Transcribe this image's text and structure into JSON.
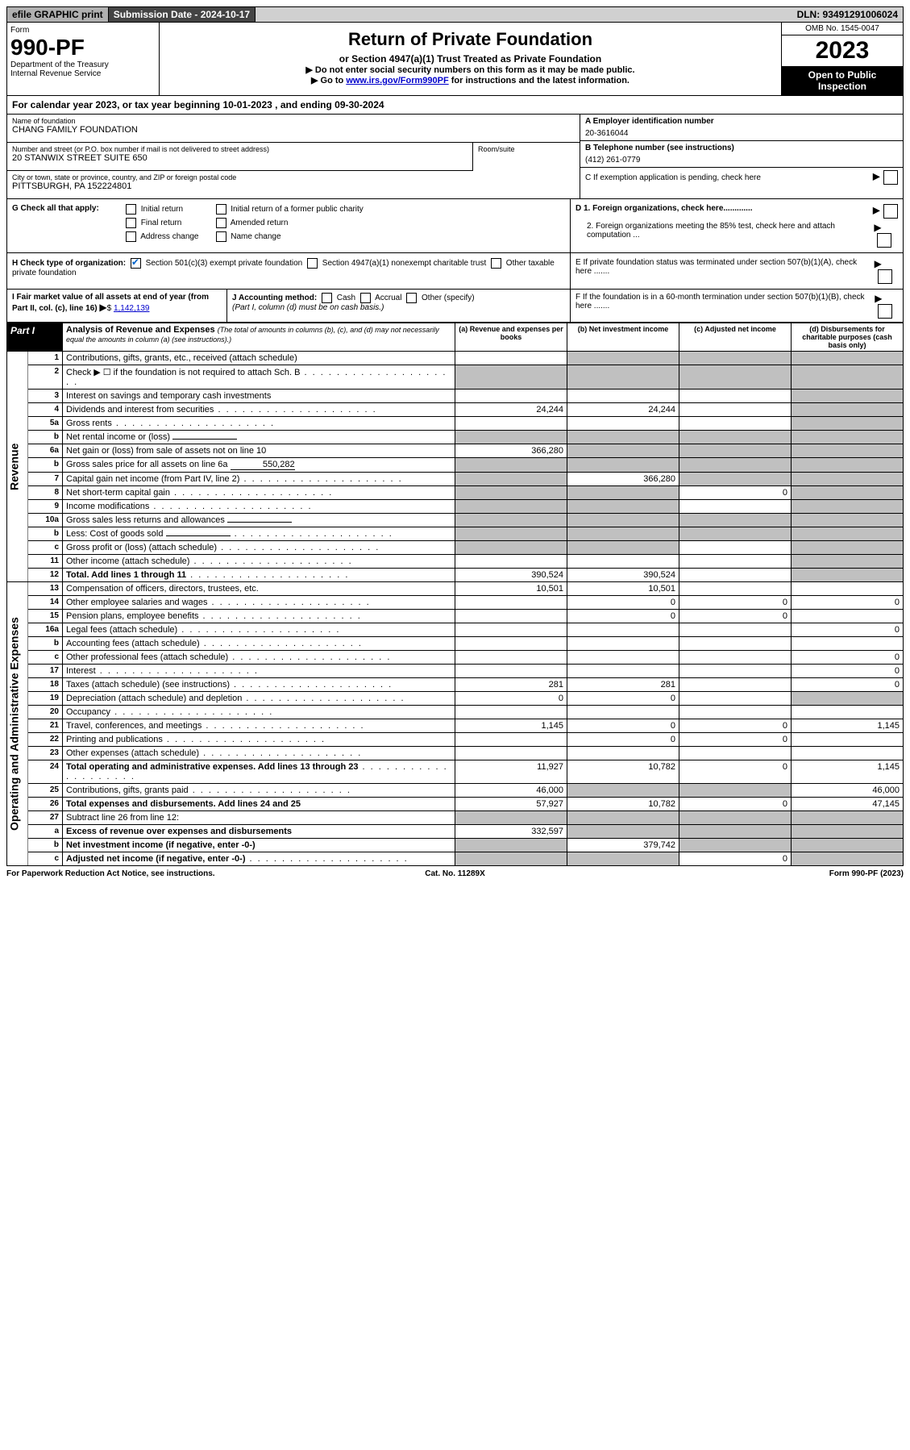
{
  "top": {
    "efile": "efile GRAPHIC print",
    "submission": "Submission Date - 2024-10-17",
    "dln": "DLN: 93491291006024"
  },
  "header": {
    "form_label": "Form",
    "form_number": "990-PF",
    "dept": "Department of the Treasury",
    "irs": "Internal Revenue Service",
    "title": "Return of Private Foundation",
    "subtitle": "or Section 4947(a)(1) Trust Treated as Private Foundation",
    "instr1": "▶ Do not enter social security numbers on this form as it may be made public.",
    "instr2_pre": "▶ Go to ",
    "instr2_link": "www.irs.gov/Form990PF",
    "instr2_post": " for instructions and the latest information.",
    "omb": "OMB No. 1545-0047",
    "year": "2023",
    "inspect": "Open to Public Inspection"
  },
  "cal_year": "For calendar year 2023, or tax year beginning 10-01-2023           , and ending 09-30-2024",
  "info": {
    "name_lbl": "Name of foundation",
    "name": "CHANG FAMILY FOUNDATION",
    "addr_lbl": "Number and street (or P.O. box number if mail is not delivered to street address)",
    "addr": "20 STANWIX STREET SUITE 650",
    "room_lbl": "Room/suite",
    "city_lbl": "City or town, state or province, country, and ZIP or foreign postal code",
    "city": "PITTSBURGH, PA  152224801",
    "a_lbl": "A Employer identification number",
    "a_val": "20-3616044",
    "b_lbl": "B Telephone number (see instructions)",
    "b_val": "(412) 261-0779",
    "c_lbl": "C If exemption application is pending, check here",
    "d1_lbl": "D 1. Foreign organizations, check here.............",
    "d2_lbl": "2. Foreign organizations meeting the 85% test, check here and attach computation ...",
    "e_lbl": "E  If private foundation status was terminated under section 507(b)(1)(A), check here .......",
    "f_lbl": "F  If the foundation is in a 60-month termination under section 507(b)(1)(B), check here .......",
    "g_lbl": "G Check all that apply:",
    "g_opts": [
      "Initial return",
      "Initial return of a former public charity",
      "Final return",
      "Amended return",
      "Address change",
      "Name change"
    ],
    "h_lbl": "H Check type of organization:",
    "h_opts": [
      "Section 501(c)(3) exempt private foundation",
      "Section 4947(a)(1) nonexempt charitable trust",
      "Other taxable private foundation"
    ],
    "i_lbl": "I Fair market value of all assets at end of year (from Part II, col. (c), line 16)",
    "i_val": "1,142,139",
    "j_lbl": "J Accounting method:",
    "j_opts": [
      "Cash",
      "Accrual",
      "Other (specify)"
    ],
    "j_note": "(Part I, column (d) must be on cash basis.)"
  },
  "part1": {
    "label": "Part I",
    "title": "Analysis of Revenue and Expenses",
    "title_note": "(The total of amounts in columns (b), (c), and (d) may not necessarily equal the amounts in column (a) (see instructions).)",
    "cols": {
      "a": "(a)  Revenue and expenses per books",
      "b": "(b)  Net investment income",
      "c": "(c)  Adjusted net income",
      "d": "(d)  Disbursements for charitable purposes (cash basis only)"
    },
    "revenue_label": "Revenue",
    "expenses_label": "Operating and Administrative Expenses",
    "rows": [
      {
        "ln": "1",
        "desc": "Contributions, gifts, grants, etc., received (attach schedule)",
        "a": "",
        "b": "grey",
        "c": "grey",
        "d": "grey"
      },
      {
        "ln": "2",
        "desc": "Check ▶ ☐ if the foundation is not required to attach Sch. B",
        "a": "grey",
        "b": "grey",
        "c": "grey",
        "d": "grey",
        "dots": true
      },
      {
        "ln": "3",
        "desc": "Interest on savings and temporary cash investments",
        "a": "",
        "b": "",
        "c": "",
        "d": "grey"
      },
      {
        "ln": "4",
        "desc": "Dividends and interest from securities",
        "a": "24,244",
        "b": "24,244",
        "c": "",
        "d": "grey",
        "dots": true
      },
      {
        "ln": "5a",
        "desc": "Gross rents",
        "a": "",
        "b": "",
        "c": "",
        "d": "grey",
        "dots": true
      },
      {
        "ln": "b",
        "desc": "Net rental income or (loss)",
        "a": "grey",
        "b": "grey",
        "c": "grey",
        "d": "grey",
        "inline": ""
      },
      {
        "ln": "6a",
        "desc": "Net gain or (loss) from sale of assets not on line 10",
        "a": "366,280",
        "b": "grey",
        "c": "grey",
        "d": "grey"
      },
      {
        "ln": "b",
        "desc": "Gross sales price for all assets on line 6a",
        "a": "grey",
        "b": "grey",
        "c": "grey",
        "d": "grey",
        "inline": "550,282"
      },
      {
        "ln": "7",
        "desc": "Capital gain net income (from Part IV, line 2)",
        "a": "grey",
        "b": "366,280",
        "c": "grey",
        "d": "grey",
        "dots": true
      },
      {
        "ln": "8",
        "desc": "Net short-term capital gain",
        "a": "grey",
        "b": "grey",
        "c": "0",
        "d": "grey",
        "dots": true
      },
      {
        "ln": "9",
        "desc": "Income modifications",
        "a": "grey",
        "b": "grey",
        "c": "",
        "d": "grey",
        "dots": true
      },
      {
        "ln": "10a",
        "desc": "Gross sales less returns and allowances",
        "a": "grey",
        "b": "grey",
        "c": "grey",
        "d": "grey",
        "inline": ""
      },
      {
        "ln": "b",
        "desc": "Less: Cost of goods sold",
        "a": "grey",
        "b": "grey",
        "c": "grey",
        "d": "grey",
        "inline": "",
        "dots": true
      },
      {
        "ln": "c",
        "desc": "Gross profit or (loss) (attach schedule)",
        "a": "grey",
        "b": "grey",
        "c": "",
        "d": "grey",
        "dots": true
      },
      {
        "ln": "11",
        "desc": "Other income (attach schedule)",
        "a": "",
        "b": "",
        "c": "",
        "d": "grey",
        "dots": true
      },
      {
        "ln": "12",
        "desc": "Total. Add lines 1 through 11",
        "a": "390,524",
        "b": "390,524",
        "c": "",
        "d": "grey",
        "bold": true,
        "dots": true
      },
      {
        "ln": "13",
        "desc": "Compensation of officers, directors, trustees, etc.",
        "a": "10,501",
        "b": "10,501",
        "c": "",
        "d": ""
      },
      {
        "ln": "14",
        "desc": "Other employee salaries and wages",
        "a": "",
        "b": "0",
        "c": "0",
        "d": "0",
        "dots": true
      },
      {
        "ln": "15",
        "desc": "Pension plans, employee benefits",
        "a": "",
        "b": "0",
        "c": "0",
        "d": "",
        "dots": true
      },
      {
        "ln": "16a",
        "desc": "Legal fees (attach schedule)",
        "a": "",
        "b": "",
        "c": "",
        "d": "0",
        "dots": true
      },
      {
        "ln": "b",
        "desc": "Accounting fees (attach schedule)",
        "a": "",
        "b": "",
        "c": "",
        "d": "",
        "dots": true
      },
      {
        "ln": "c",
        "desc": "Other professional fees (attach schedule)",
        "a": "",
        "b": "",
        "c": "",
        "d": "0",
        "dots": true
      },
      {
        "ln": "17",
        "desc": "Interest",
        "a": "",
        "b": "",
        "c": "",
        "d": "0",
        "dots": true
      },
      {
        "ln": "18",
        "desc": "Taxes (attach schedule) (see instructions)",
        "a": "281",
        "b": "281",
        "c": "",
        "d": "0",
        "dots": true
      },
      {
        "ln": "19",
        "desc": "Depreciation (attach schedule) and depletion",
        "a": "0",
        "b": "0",
        "c": "",
        "d": "grey",
        "dots": true
      },
      {
        "ln": "20",
        "desc": "Occupancy",
        "a": "",
        "b": "",
        "c": "",
        "d": "",
        "dots": true
      },
      {
        "ln": "21",
        "desc": "Travel, conferences, and meetings",
        "a": "1,145",
        "b": "0",
        "c": "0",
        "d": "1,145",
        "dots": true
      },
      {
        "ln": "22",
        "desc": "Printing and publications",
        "a": "",
        "b": "0",
        "c": "0",
        "d": "",
        "dots": true
      },
      {
        "ln": "23",
        "desc": "Other expenses (attach schedule)",
        "a": "",
        "b": "",
        "c": "",
        "d": "",
        "dots": true
      },
      {
        "ln": "24",
        "desc": "Total operating and administrative expenses. Add lines 13 through 23",
        "a": "11,927",
        "b": "10,782",
        "c": "0",
        "d": "1,145",
        "bold": true,
        "dots": true
      },
      {
        "ln": "25",
        "desc": "Contributions, gifts, grants paid",
        "a": "46,000",
        "b": "grey",
        "c": "grey",
        "d": "46,000",
        "dots": true
      },
      {
        "ln": "26",
        "desc": "Total expenses and disbursements. Add lines 24 and 25",
        "a": "57,927",
        "b": "10,782",
        "c": "0",
        "d": "47,145",
        "bold": true
      },
      {
        "ln": "27",
        "desc": "Subtract line 26 from line 12:",
        "a": "grey",
        "b": "grey",
        "c": "grey",
        "d": "grey"
      },
      {
        "ln": "a",
        "desc": "Excess of revenue over expenses and disbursements",
        "a": "332,597",
        "b": "grey",
        "c": "grey",
        "d": "grey",
        "bold": true
      },
      {
        "ln": "b",
        "desc": "Net investment income (if negative, enter -0-)",
        "a": "grey",
        "b": "379,742",
        "c": "grey",
        "d": "grey",
        "bold": true
      },
      {
        "ln": "c",
        "desc": "Adjusted net income (if negative, enter -0-)",
        "a": "grey",
        "b": "grey",
        "c": "0",
        "d": "grey",
        "bold": true,
        "dots": true
      }
    ]
  },
  "footer": {
    "left": "For Paperwork Reduction Act Notice, see instructions.",
    "mid": "Cat. No. 11289X",
    "right": "Form 990-PF (2023)"
  }
}
